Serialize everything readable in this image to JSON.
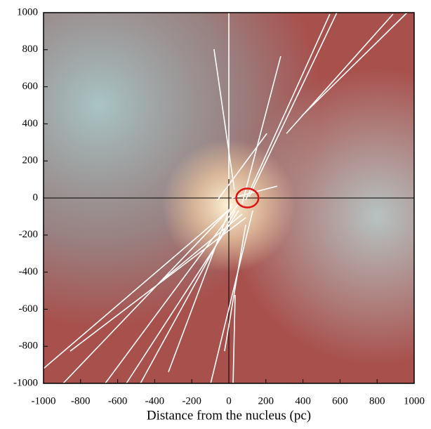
{
  "chart_data": {
    "type": "segments",
    "xlabel": "Distance from the nucleus (pc)",
    "xlim": [
      -1000,
      1000
    ],
    "ylim": [
      -1000,
      1000
    ],
    "xticks": [
      -1000,
      -800,
      -600,
      -400,
      -200,
      0,
      200,
      400,
      600,
      800,
      1000
    ],
    "yticks": [
      -1000,
      -800,
      -600,
      -400,
      -200,
      0,
      200,
      400,
      600,
      800,
      1000
    ],
    "color": "#ffffff",
    "segments": [
      {
        "x": [
          30,
          -80
        ],
        "y": [
          45,
          803
        ]
      },
      {
        "x": [
          72,
          280
        ],
        "y": [
          -30,
          765
        ]
      },
      {
        "x": [
          91,
          545
        ],
        "y": [
          -11,
          992
        ]
      },
      {
        "x": [
          110,
          583
        ],
        "y": [
          8,
          1000
        ]
      },
      {
        "x": [
          311,
          886
        ],
        "y": [
          348,
          992
        ]
      },
      {
        "x": [
          394,
          962
        ],
        "y": [
          443,
          1000
        ]
      },
      {
        "x": [
          -61,
          205
        ],
        "y": [
          -11,
          348
        ]
      },
      {
        "x": [
          -4,
          -1000
        ],
        "y": [
          -68,
          -920
        ]
      },
      {
        "x": [
          15,
          -894
        ],
        "y": [
          -49,
          -1000
        ]
      },
      {
        "x": [
          53,
          -667
        ],
        "y": [
          -30,
          -1000
        ]
      },
      {
        "x": [
          34,
          -477
        ],
        "y": [
          -68,
          -1000
        ]
      },
      {
        "x": [
          72,
          -364
        ],
        "y": [
          -87,
          -447
        ]
      },
      {
        "x": [
          91,
          -856
        ],
        "y": [
          -106,
          -826
        ]
      },
      {
        "x": [
          129,
          -98
        ],
        "y": [
          -68,
          -1000
        ]
      },
      {
        "x": [
          91,
          -23
        ],
        "y": [
          -144,
          -826
        ]
      },
      {
        "x": [
          34,
          23
        ],
        "y": [
          -523,
          -1000
        ]
      },
      {
        "x": [
          53,
          -553
        ],
        "y": [
          -68,
          -1000
        ]
      },
      {
        "x": [
          15,
          -326
        ],
        "y": [
          -30,
          -939
        ]
      },
      {
        "x": [
          0,
          0
        ],
        "y": [
          1000,
          102
        ]
      },
      {
        "x": [
          15,
          261
        ],
        "y": [
          0,
          64
        ]
      }
    ],
    "marker": {
      "x": 100,
      "y": 0,
      "radius": 60,
      "color": "#e01010"
    }
  }
}
